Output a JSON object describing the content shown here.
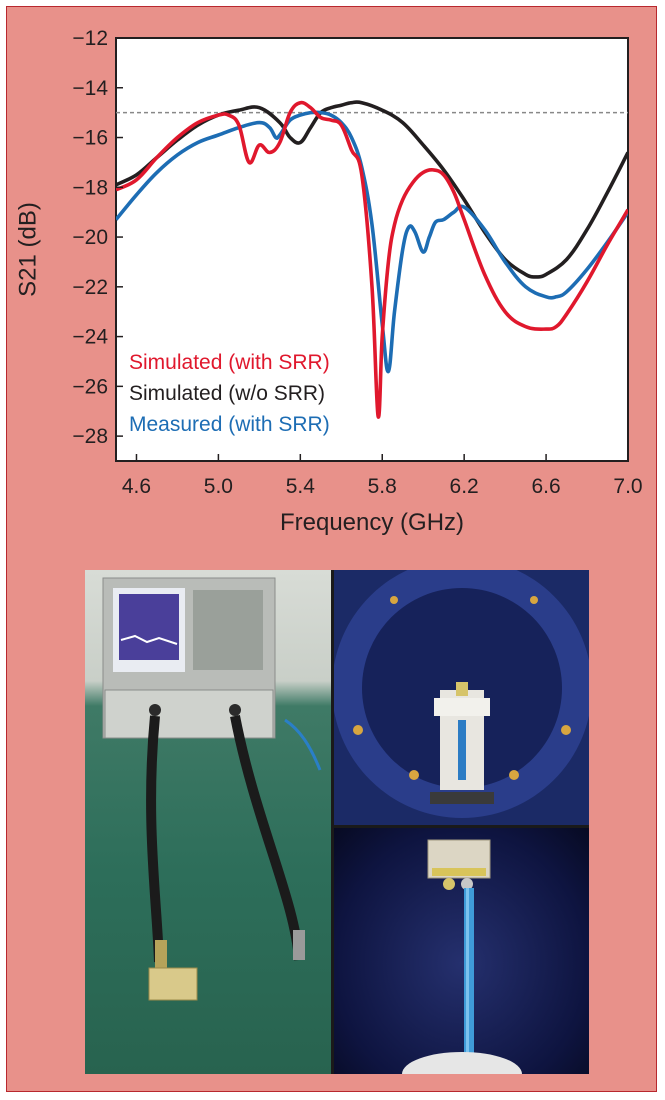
{
  "chart_data": {
    "type": "line",
    "xlabel": "Frequency (GHz)",
    "ylabel": "S21 (dB)",
    "xlim": [
      4.5,
      7.0
    ],
    "ylim": [
      -29,
      -12
    ],
    "x_ticks": [
      "4.6",
      "5.0",
      "5.4",
      "5.8",
      "6.2",
      "6.6",
      "7.0"
    ],
    "x_tick_values": [
      4.6,
      5.0,
      5.4,
      5.8,
      6.2,
      6.6,
      7.0
    ],
    "y_ticks": [
      "−12",
      "−14",
      "−16",
      "−18",
      "−20",
      "−22",
      "−24",
      "−26",
      "−28"
    ],
    "y_tick_values": [
      -12,
      -14,
      -16,
      -18,
      -20,
      -22,
      -24,
      -26,
      -28
    ],
    "reference_line": {
      "y": -15,
      "style": "dashed",
      "color": "#888888"
    },
    "grid": false,
    "legend_position": "bottom-left",
    "series": [
      {
        "name": "Simulated (with SRR)",
        "color": "#e0182d",
        "x": [
          4.5,
          4.6,
          4.7,
          4.8,
          4.9,
          5.0,
          5.05,
          5.1,
          5.15,
          5.2,
          5.25,
          5.3,
          5.35,
          5.4,
          5.45,
          5.5,
          5.55,
          5.6,
          5.65,
          5.7,
          5.75,
          5.78,
          5.8,
          5.83,
          5.86,
          5.9,
          5.95,
          6.0,
          6.05,
          6.1,
          6.15,
          6.2,
          6.3,
          6.4,
          6.5,
          6.6,
          6.65,
          6.7,
          6.8,
          6.9,
          7.0
        ],
        "y": [
          -18.1,
          -17.7,
          -16.8,
          -16.0,
          -15.4,
          -15.1,
          -15.1,
          -15.5,
          -17.0,
          -16.3,
          -16.6,
          -16.2,
          -15.0,
          -14.6,
          -14.8,
          -15.2,
          -15.3,
          -15.5,
          -16.5,
          -17.5,
          -22.0,
          -27.2,
          -24.0,
          -21.0,
          -19.5,
          -18.5,
          -17.8,
          -17.4,
          -17.3,
          -17.5,
          -18.2,
          -19.3,
          -21.5,
          -23.0,
          -23.6,
          -23.7,
          -23.6,
          -23.1,
          -21.8,
          -20.3,
          -18.9
        ]
      },
      {
        "name": "Simulated (w/o SRR)",
        "color": "#231f20",
        "x": [
          4.5,
          4.6,
          4.7,
          4.8,
          4.9,
          5.0,
          5.1,
          5.2,
          5.3,
          5.35,
          5.4,
          5.45,
          5.5,
          5.55,
          5.6,
          5.65,
          5.7,
          5.8,
          5.9,
          6.0,
          6.1,
          6.2,
          6.3,
          6.4,
          6.5,
          6.55,
          6.6,
          6.7,
          6.8,
          6.9,
          7.0
        ],
        "y": [
          -17.9,
          -17.5,
          -16.8,
          -16.1,
          -15.5,
          -15.1,
          -14.9,
          -14.8,
          -15.4,
          -16.0,
          -16.2,
          -15.6,
          -15.0,
          -14.8,
          -14.7,
          -14.6,
          -14.6,
          -14.9,
          -15.4,
          -16.3,
          -17.3,
          -18.5,
          -19.8,
          -20.9,
          -21.5,
          -21.6,
          -21.5,
          -20.9,
          -19.7,
          -18.2,
          -16.6
        ]
      },
      {
        "name": "Measured (with SRR)",
        "color": "#1d6db4",
        "x": [
          4.5,
          4.6,
          4.7,
          4.8,
          4.9,
          5.0,
          5.1,
          5.2,
          5.25,
          5.28,
          5.3,
          5.35,
          5.4,
          5.45,
          5.5,
          5.55,
          5.6,
          5.65,
          5.7,
          5.75,
          5.8,
          5.83,
          5.86,
          5.9,
          5.93,
          5.96,
          6.0,
          6.03,
          6.06,
          6.1,
          6.15,
          6.2,
          6.3,
          6.4,
          6.5,
          6.6,
          6.65,
          6.7,
          6.8,
          6.9,
          7.0
        ],
        "y": [
          -19.3,
          -18.3,
          -17.4,
          -16.7,
          -16.2,
          -15.9,
          -15.6,
          -15.4,
          -15.6,
          -16.0,
          -15.9,
          -15.3,
          -15.1,
          -15.0,
          -15.0,
          -15.1,
          -15.4,
          -16.0,
          -17.2,
          -19.5,
          -23.5,
          -25.4,
          -23.0,
          -20.5,
          -19.6,
          -19.8,
          -20.6,
          -20.0,
          -19.4,
          -19.3,
          -19.0,
          -18.8,
          -19.7,
          -21.0,
          -22.0,
          -22.4,
          -22.4,
          -22.2,
          -21.3,
          -20.2,
          -19.0
        ]
      }
    ],
    "legend": [
      {
        "label": "Simulated (with SRR)",
        "color": "#e0182d"
      },
      {
        "label": "Simulated (w/o SRR)",
        "color": "#231f20"
      },
      {
        "label": "Measured (with SRR)",
        "color": "#1d6db4"
      }
    ]
  },
  "colors": {
    "frame_background": "#e8918a",
    "frame_border": "#b8282e",
    "plot_background": "#ffffff"
  }
}
